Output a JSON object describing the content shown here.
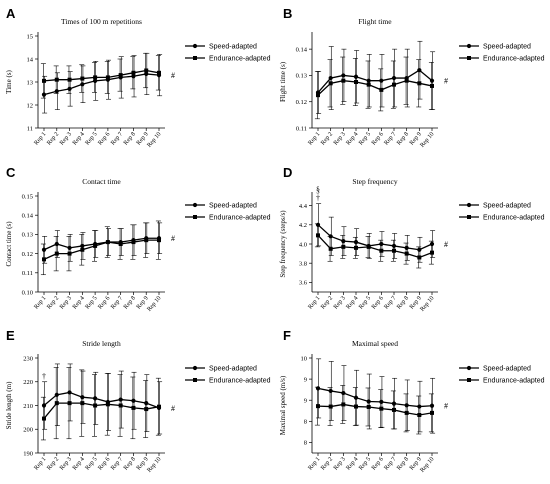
{
  "figure": {
    "panels": [
      {
        "letter": "A",
        "chart_data": {
          "type": "line",
          "title": "Times of 100 m repetitions",
          "ylabel": "Time (s)",
          "categories": [
            "Rep 1",
            "Rep 2",
            "Rep 3",
            "Rep 4",
            "Rep 5",
            "Rep 6",
            "Rep 7",
            "Rep 8",
            "Rep 9",
            "Rep 10"
          ],
          "ylim": [
            11,
            15
          ],
          "yticks": [
            11,
            12,
            13,
            14,
            15
          ],
          "annotation": "#",
          "series": [
            {
              "name": "Speed-adapted",
              "marker": "circle",
              "values": [
                12.45,
                12.6,
                12.7,
                12.9,
                13.05,
                13.1,
                13.2,
                13.25,
                13.35,
                13.3
              ],
              "error": [
                0.8,
                0.8,
                0.75,
                0.8,
                0.85,
                0.85,
                0.9,
                0.9,
                0.9,
                0.9
              ]
            },
            {
              "name": "Endurance-adapted",
              "marker": "square",
              "values": [
                13.05,
                13.1,
                13.1,
                13.15,
                13.2,
                13.2,
                13.3,
                13.4,
                13.5,
                13.4
              ],
              "error": [
                0.75,
                0.6,
                0.6,
                0.6,
                0.65,
                0.7,
                0.7,
                0.7,
                0.75,
                0.75
              ]
            }
          ]
        }
      },
      {
        "letter": "B",
        "chart_data": {
          "type": "line",
          "title": "Flight time",
          "ylabel": "Flight time (s)",
          "categories": [
            "Rep 1",
            "Rep 2",
            "Rep 3",
            "Rep 4",
            "Rep 5",
            "Rep 6",
            "Rep 7",
            "Rep 8",
            "Rep 9",
            "Rep 10"
          ],
          "ylim": [
            0.11,
            0.145
          ],
          "yticks": [
            0.11,
            0.12,
            0.13,
            0.14
          ],
          "annotation": "#",
          "series": [
            {
              "name": "Speed-adapted",
              "marker": "circle",
              "values": [
                0.1235,
                0.129,
                0.13,
                0.1295,
                0.128,
                0.128,
                0.129,
                0.129,
                0.132,
                0.128
              ],
              "error": [
                0.008,
                0.012,
                0.01,
                0.01,
                0.01,
                0.01,
                0.011,
                0.011,
                0.011,
                0.011
              ]
            },
            {
              "name": "Endurance-adapted",
              "marker": "square",
              "values": [
                0.1225,
                0.127,
                0.128,
                0.1275,
                0.1265,
                0.1245,
                0.1265,
                0.128,
                0.127,
                0.126
              ],
              "error": [
                0.009,
                0.009,
                0.009,
                0.009,
                0.009,
                0.008,
                0.009,
                0.009,
                0.009,
                0.009
              ]
            }
          ]
        }
      },
      {
        "letter": "C",
        "chart_data": {
          "type": "line",
          "title": "Contact time",
          "ylabel": "Contact time (s)",
          "categories": [
            "Rep 1",
            "Rep 2",
            "Rep 3",
            "Rep 4",
            "Rep 5",
            "Rep 6",
            "Rep 7",
            "Rep 8",
            "Rep 9",
            "Rep 10"
          ],
          "ylim": [
            0.1,
            0.15
          ],
          "yticks": [
            0.1,
            0.11,
            0.12,
            0.13,
            0.14,
            0.15
          ],
          "annotation": "#",
          "series": [
            {
              "name": "Speed-adapted",
              "marker": "circle",
              "values": [
                0.122,
                0.125,
                0.123,
                0.124,
                0.125,
                0.126,
                0.126,
                0.127,
                0.128,
                0.128
              ],
              "error": [
                0.007,
                0.007,
                0.007,
                0.007,
                0.007,
                0.007,
                0.007,
                0.008,
                0.008,
                0.008
              ]
            },
            {
              "name": "Endurance-adapted",
              "marker": "square",
              "values": [
                0.117,
                0.12,
                0.12,
                0.122,
                0.124,
                0.126,
                0.125,
                0.126,
                0.127,
                0.127
              ],
              "error": [
                0.008,
                0.009,
                0.009,
                0.008,
                0.008,
                0.008,
                0.008,
                0.009,
                0.009,
                0.01
              ]
            }
          ]
        }
      },
      {
        "letter": "D",
        "chart_data": {
          "type": "line",
          "title": "Step frequency",
          "ylabel": "Step frequency (steps/s)",
          "categories": [
            "Rep 1",
            "Rep 2",
            "Rep 3",
            "Rep 4",
            "Rep 5",
            "Rep 6",
            "Rep 7",
            "Rep 8",
            "Rep 9",
            "Rep 10"
          ],
          "ylim": [
            3.5,
            4.5
          ],
          "yticks": [
            3.6,
            3.8,
            4.0,
            4.2,
            4.4
          ],
          "annotation": "#",
          "marks_at_rep1": [
            "§",
            "†"
          ],
          "series": [
            {
              "name": "Speed-adapted",
              "marker": "circle",
              "values": [
                4.2,
                4.08,
                4.03,
                4.02,
                3.98,
                4.0,
                3.98,
                3.96,
                3.94,
                4.0
              ],
              "error": [
                0.22,
                0.2,
                0.15,
                0.14,
                0.13,
                0.13,
                0.13,
                0.13,
                0.13,
                0.14
              ]
            },
            {
              "name": "Endurance-adapted",
              "marker": "square",
              "values": [
                4.09,
                3.95,
                3.97,
                3.96,
                3.97,
                3.93,
                3.93,
                3.9,
                3.86,
                3.91
              ],
              "error": [
                0.12,
                0.13,
                0.12,
                0.11,
                0.11,
                0.11,
                0.11,
                0.11,
                0.11,
                0.12
              ]
            }
          ]
        }
      },
      {
        "letter": "E",
        "chart_data": {
          "type": "line",
          "title": "Stride length",
          "ylabel": "Stride length (m)",
          "categories": [
            "Rep 1",
            "Rep 2",
            "Rep 3",
            "Rep 4",
            "Rep 5",
            "Rep 6",
            "Rep 7",
            "Rep 8",
            "Rep 9",
            "Rep 10"
          ],
          "ylim": [
            190,
            230
          ],
          "yticks": [
            190,
            200,
            210,
            220,
            230
          ],
          "annotation": "#",
          "marks_at_rep1": [
            "†"
          ],
          "series": [
            {
              "name": "Speed-adapted",
              "marker": "circle",
              "values": [
                210,
                214.5,
                215.5,
                213.5,
                213,
                211.5,
                212.5,
                212,
                211,
                209
              ],
              "error": [
                10,
                13,
                12,
                11,
                11,
                12,
                12,
                12,
                12,
                11
              ]
            },
            {
              "name": "Endurance-adapted",
              "marker": "square",
              "values": [
                204.5,
                211,
                211,
                211,
                210,
                210.5,
                210,
                209,
                208.5,
                209.5
              ],
              "error": [
                9,
                15,
                15,
                14,
                13,
                13,
                13,
                13,
                12,
                12
              ]
            }
          ]
        }
      },
      {
        "letter": "F",
        "chart_data": {
          "type": "line",
          "title": "Maximal speed",
          "ylabel": "Maximal speed (m/s)",
          "categories": [
            "Rep 1",
            "Rep 2",
            "Rep 3",
            "Rep 4",
            "Rep 5",
            "Rep 6",
            "Rep 7",
            "Rep 8",
            "Rep 9",
            "Rep 10"
          ],
          "ylim": [
            7.25,
            9.5
          ],
          "yticks": [
            7.5,
            8.0,
            8.5,
            9.0,
            9.5
          ],
          "annotation": "#",
          "series": [
            {
              "name": "Speed-adapted",
              "marker": "circle",
              "values": [
                8.78,
                8.72,
                8.67,
                8.56,
                8.47,
                8.46,
                8.42,
                8.38,
                8.35,
                8.37
              ],
              "error": [
                0.7,
                0.7,
                0.65,
                0.65,
                0.65,
                0.6,
                0.6,
                0.6,
                0.6,
                0.65
              ]
            },
            {
              "name": "Endurance-adapted",
              "marker": "square",
              "values": [
                8.36,
                8.35,
                8.4,
                8.35,
                8.34,
                8.3,
                8.27,
                8.2,
                8.15,
                8.2
              ],
              "error": [
                0.45,
                0.45,
                0.45,
                0.45,
                0.45,
                0.45,
                0.45,
                0.45,
                0.45,
                0.45
              ]
            }
          ]
        }
      }
    ]
  }
}
